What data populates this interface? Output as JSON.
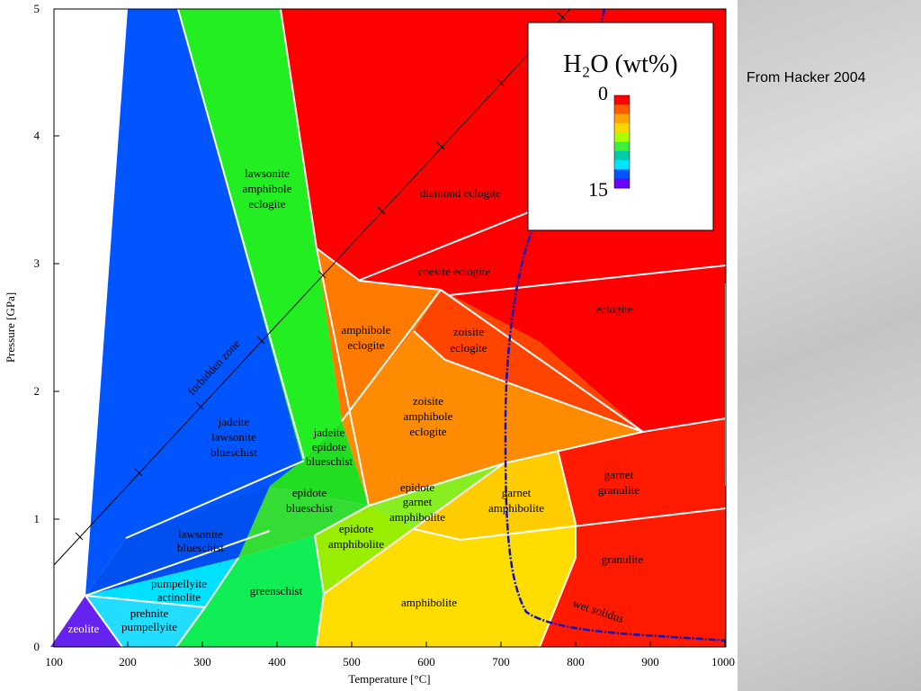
{
  "credit": "From Hacker 2004",
  "axes": {
    "x_title": "Temperature [°C]",
    "y_title": "Pressure [GPa]",
    "x_ticks": [
      "100",
      "200",
      "300",
      "400",
      "500",
      "600",
      "700",
      "800",
      "900",
      "1000"
    ],
    "y_ticks": [
      "0",
      "1",
      "2",
      "3",
      "4",
      "5"
    ]
  },
  "legend": {
    "title": "H₂O (wt%)",
    "min_label": "0",
    "max_label": "15",
    "colors": [
      "#ff0000",
      "#ff5a00",
      "#ffa500",
      "#ffd700",
      "#aaff00",
      "#3cf03c",
      "#00ccaa",
      "#00e5ff",
      "#0055ff",
      "#6a00ff"
    ]
  },
  "lines": {
    "forbidden_zone": "forbidden zone",
    "wet_solidus": "wet solidus"
  },
  "facies": {
    "zeolite": "zeolite",
    "prehnite_pumpellyite_1": "prehnite",
    "prehnite_pumpellyite_2": "pumpellyite",
    "pumpellyite_actinolite_1": "pumpellyite",
    "pumpellyite_actinolite_2": "actinolite",
    "greenschist": "greenschist",
    "lawsonite_blueschist_1": "lawsonite",
    "lawsonite_blueschist_2": "blueschist",
    "jadeite_lawsonite_blueschist_1": "jadeite",
    "jadeite_lawsonite_blueschist_2": "lawsonite",
    "jadeite_lawsonite_blueschist_3": "blueschist",
    "lawsonite_amphibole_eclogite_1": "lawsonite",
    "lawsonite_amphibole_eclogite_2": "amphibole",
    "lawsonite_amphibole_eclogite_3": "eclogite",
    "jadeite_epidote_blueschist_1": "jadeite",
    "jadeite_epidote_blueschist_2": "epidote",
    "jadeite_epidote_blueschist_3": "blueschist",
    "epidote_blueschist_1": "epidote",
    "epidote_blueschist_2": "blueschist",
    "epidote_amphibolite_1": "epidote",
    "epidote_amphibolite_2": "amphibolite",
    "epidote_garnet_amphibolite_1": "epidote",
    "epidote_garnet_amphibolite_2": "garnet",
    "epidote_garnet_amphibolite_3": "amphibolite",
    "amphibolite": "amphibolite",
    "garnet_amphibolite_1": "garnet",
    "garnet_amphibolite_2": "amphibolite",
    "amphibole_eclogite_1": "amphibole",
    "amphibole_eclogite_2": "eclogite",
    "zoisite_amphibole_eclogite_1": "zoisite",
    "zoisite_amphibole_eclogite_2": "amphibole",
    "zoisite_amphibole_eclogite_3": "eclogite",
    "zoisite_eclogite_1": "zoisite",
    "zoisite_eclogite_2": "eclogite",
    "diamond_eclogite": "diamond eclogite",
    "coesite_eclogite": "coesite eclogite",
    "eclogite": "eclogite",
    "garnet_granulite_1": "garnet",
    "garnet_granulite_2": "granulite",
    "granulite": "granulite"
  }
}
